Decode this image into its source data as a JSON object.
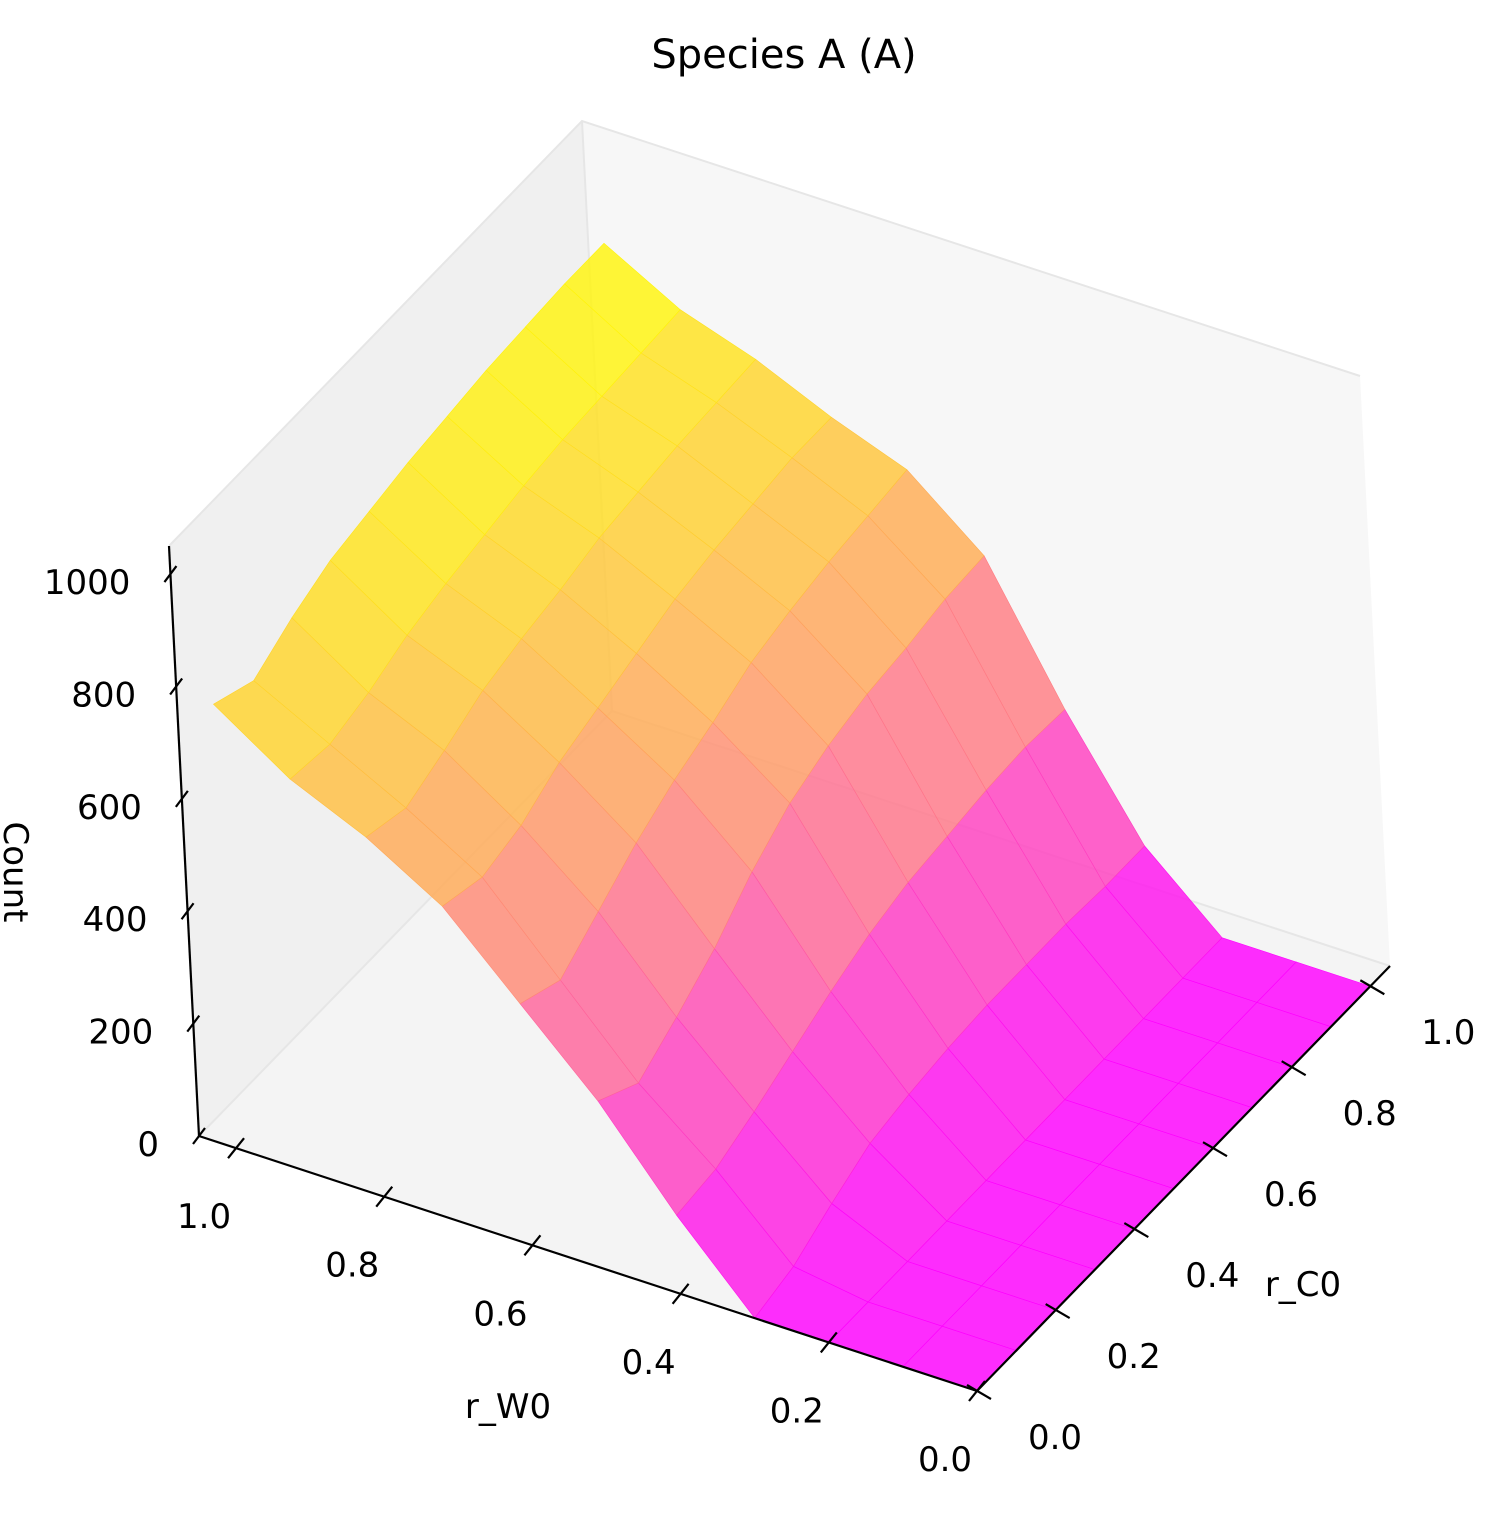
{
  "chart_data": {
    "type": "surface",
    "title": "Species A (A)",
    "xlabel": "r_W0",
    "ylabel": "r_C0",
    "zlabel": "Count",
    "xlim": [
      0,
      1.05
    ],
    "ylim": [
      0,
      1.05
    ],
    "zlim": [
      0,
      1050
    ],
    "x_ticks": [
      "0.0",
      "0.2",
      "0.4",
      "0.6",
      "0.8",
      "1.0"
    ],
    "y_ticks": [
      "0.0",
      "0.2",
      "0.4",
      "0.6",
      "0.8",
      "1.0"
    ],
    "z_ticks": [
      "0",
      "200",
      "400",
      "600",
      "800",
      "1000"
    ],
    "colormap": "spring",
    "colormap_colors": [
      "#ff00ff",
      "#ffff00"
    ],
    "grid": {
      "x": [
        0.0,
        0.1,
        0.2,
        0.3,
        0.4,
        0.5,
        0.6,
        0.7,
        0.8,
        0.9,
        1.0
      ],
      "y": [
        0.0,
        0.1,
        0.2,
        0.3,
        0.4,
        0.5,
        0.6,
        0.7,
        0.8,
        0.9,
        1.0
      ],
      "z": [
        [
          0,
          0,
          0,
          0,
          0,
          0,
          0,
          0,
          0,
          0,
          0
        ],
        [
          0,
          0,
          0,
          0,
          0,
          0,
          0,
          0,
          0,
          0,
          0
        ],
        [
          0,
          0,
          0,
          0,
          0,
          0,
          0,
          0,
          0,
          0,
          0
        ],
        [
          0,
          20,
          60,
          95,
          110,
          120,
          125,
          125,
          125,
          120,
          120
        ],
        [
          140,
          150,
          180,
          215,
          250,
          280,
          300,
          310,
          320,
          325,
          320
        ],
        [
          300,
          260,
          305,
          355,
          420,
          470,
          500,
          520,
          530,
          545,
          550
        ],
        [
          430,
          400,
          450,
          500,
          540,
          570,
          605,
          625,
          640,
          650,
          660
        ],
        [
          560,
          540,
          560,
          600,
          625,
          650,
          675,
          690,
          700,
          710,
          710
        ],
        [
          640,
          620,
          650,
          685,
          705,
          720,
          740,
          750,
          760,
          765,
          770
        ],
        [
          700,
          690,
          710,
          740,
          760,
          775,
          790,
          800,
          805,
          810,
          815
        ],
        [
          790,
          760,
          800,
          830,
          845,
          860,
          870,
          880,
          885,
          890,
          890
        ]
      ]
    }
  }
}
